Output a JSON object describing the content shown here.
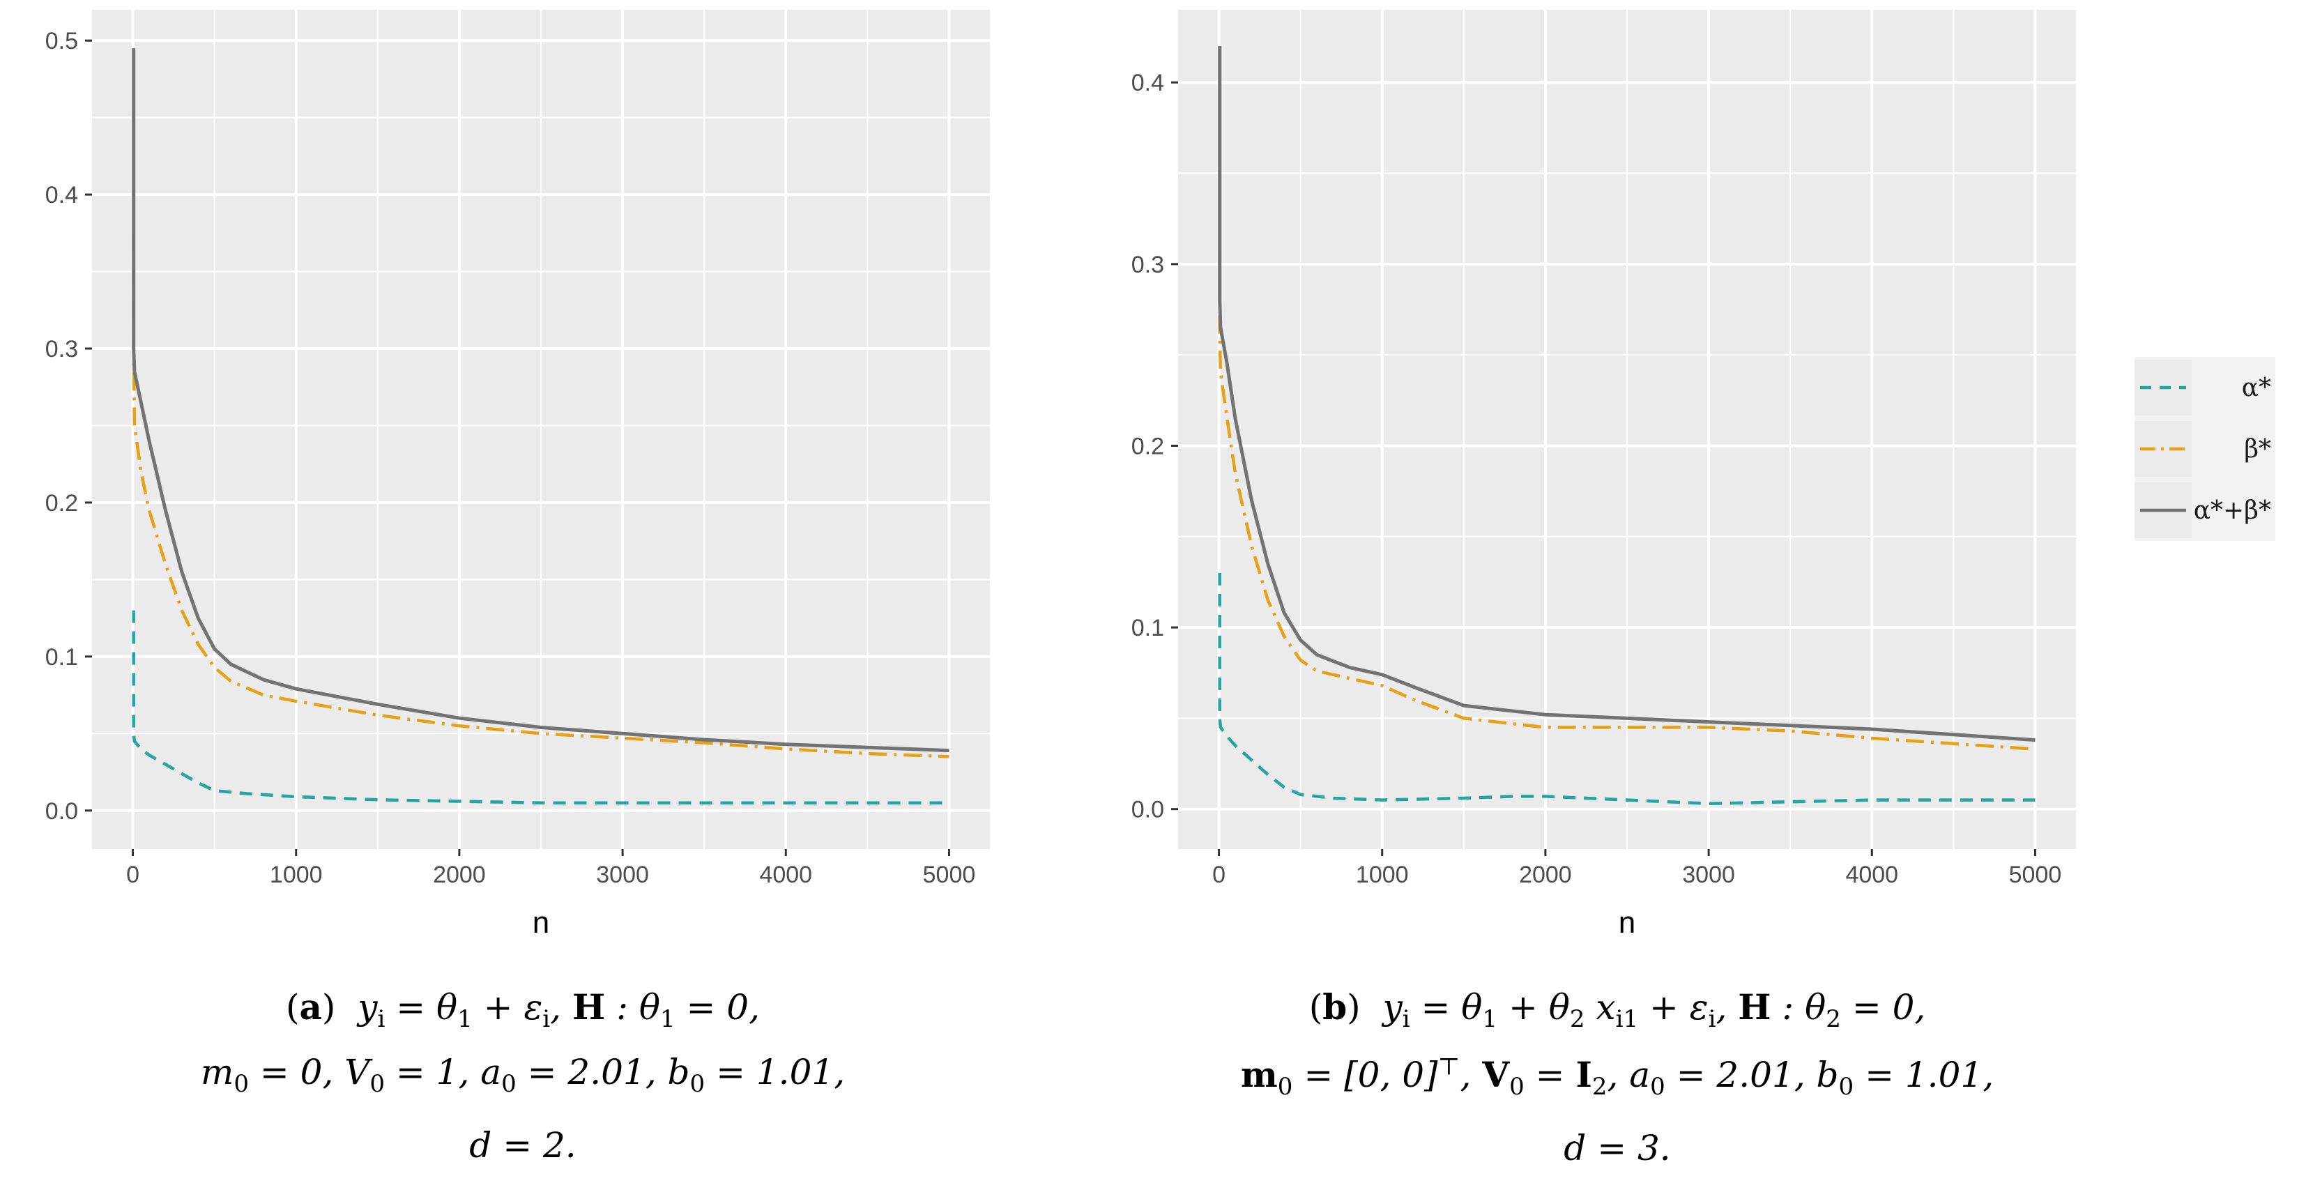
{
  "colors": {
    "panel_bg": "#ebebeb",
    "grid": "#ffffff",
    "tick_mark": "#333333",
    "alpha": "#26a5a0",
    "beta": "#e6a117",
    "sum": "#737373"
  },
  "legend": {
    "items": [
      {
        "label": "α*",
        "series": "alpha"
      },
      {
        "label": "β*",
        "series": "beta"
      },
      {
        "label": "α*+β*",
        "series": "sum"
      }
    ]
  },
  "chart_data": [
    {
      "type": "line",
      "xlabel": "n",
      "ylabel": "",
      "xlim": [
        -250,
        5250
      ],
      "ylim": [
        -0.025,
        0.52
      ],
      "xticks": [
        0,
        1000,
        2000,
        3000,
        4000,
        5000
      ],
      "xtick_labels": [
        "0",
        "1000",
        "2000",
        "3000",
        "4000",
        "5000"
      ],
      "yticks": [
        0.0,
        0.1,
        0.2,
        0.3,
        0.4,
        0.5
      ],
      "ytick_labels": [
        "0.0",
        "0.1",
        "0.2",
        "0.3",
        "0.4",
        "0.5"
      ],
      "series": [
        {
          "name": "α*",
          "key": "alpha",
          "style": "dashed",
          "x": [
            5,
            5,
            10,
            50,
            100,
            200,
            300,
            400,
            500,
            700,
            1000,
            1500,
            2000,
            2500,
            3000,
            3500,
            4000,
            4500,
            5000
          ],
          "y": [
            0.13,
            0.05,
            0.045,
            0.04,
            0.036,
            0.03,
            0.024,
            0.018,
            0.013,
            0.011,
            0.009,
            0.007,
            0.006,
            0.005,
            0.005,
            0.005,
            0.005,
            0.005,
            0.005
          ]
        },
        {
          "name": "β*",
          "key": "beta",
          "style": "dotdash",
          "x": [
            5,
            5,
            10,
            50,
            100,
            200,
            300,
            400,
            500,
            600,
            800,
            1000,
            1500,
            2000,
            2500,
            3000,
            3500,
            4000,
            4500,
            5000
          ],
          "y": [
            0.375,
            0.3,
            0.25,
            0.22,
            0.195,
            0.16,
            0.13,
            0.108,
            0.093,
            0.084,
            0.075,
            0.071,
            0.062,
            0.055,
            0.05,
            0.047,
            0.044,
            0.04,
            0.037,
            0.035
          ]
        },
        {
          "name": "α*+β*",
          "key": "sum",
          "style": "solid",
          "x": [
            5,
            5,
            10,
            50,
            100,
            200,
            300,
            400,
            500,
            600,
            800,
            1000,
            1500,
            2000,
            2500,
            3000,
            3500,
            4000,
            4500,
            5000
          ],
          "y": [
            0.495,
            0.3,
            0.285,
            0.265,
            0.24,
            0.195,
            0.155,
            0.125,
            0.105,
            0.095,
            0.085,
            0.079,
            0.069,
            0.06,
            0.054,
            0.05,
            0.046,
            0.043,
            0.041,
            0.039
          ]
        }
      ]
    },
    {
      "type": "line",
      "xlabel": "n",
      "ylabel": "",
      "xlim": [
        -250,
        5250
      ],
      "ylim": [
        -0.022,
        0.44
      ],
      "xticks": [
        0,
        1000,
        2000,
        3000,
        4000,
        5000
      ],
      "xtick_labels": [
        "0",
        "1000",
        "2000",
        "3000",
        "4000",
        "5000"
      ],
      "yticks": [
        0.0,
        0.1,
        0.2,
        0.3,
        0.4
      ],
      "ytick_labels": [
        "0.0",
        "0.1",
        "0.2",
        "0.3",
        "0.4"
      ],
      "series": [
        {
          "name": "α*",
          "key": "alpha",
          "style": "dashed",
          "x": [
            5,
            5,
            10,
            50,
            100,
            200,
            300,
            400,
            500,
            700,
            1000,
            1500,
            1800,
            2000,
            2500,
            3000,
            3500,
            4000,
            4500,
            5000
          ],
          "y": [
            0.13,
            0.05,
            0.045,
            0.04,
            0.035,
            0.027,
            0.019,
            0.012,
            0.008,
            0.006,
            0.005,
            0.006,
            0.007,
            0.007,
            0.005,
            0.003,
            0.004,
            0.005,
            0.005,
            0.005
          ]
        },
        {
          "name": "β*",
          "key": "beta",
          "style": "dotdash",
          "x": [
            5,
            5,
            10,
            50,
            100,
            200,
            300,
            400,
            500,
            600,
            800,
            1000,
            1200,
            1500,
            2000,
            2500,
            3000,
            3500,
            4000,
            4500,
            5000
          ],
          "y": [
            0.31,
            0.26,
            0.24,
            0.215,
            0.185,
            0.145,
            0.115,
            0.095,
            0.082,
            0.076,
            0.072,
            0.068,
            0.06,
            0.05,
            0.045,
            0.045,
            0.045,
            0.043,
            0.039,
            0.036,
            0.033
          ]
        },
        {
          "name": "α*+β*",
          "key": "sum",
          "style": "solid",
          "x": [
            5,
            5,
            10,
            50,
            100,
            200,
            300,
            400,
            500,
            600,
            800,
            1000,
            1200,
            1500,
            2000,
            2500,
            3000,
            3500,
            4000,
            4500,
            5000
          ],
          "y": [
            0.42,
            0.28,
            0.265,
            0.245,
            0.215,
            0.17,
            0.135,
            0.108,
            0.093,
            0.085,
            0.078,
            0.074,
            0.067,
            0.057,
            0.052,
            0.05,
            0.048,
            0.046,
            0.044,
            0.041,
            0.038
          ]
        }
      ]
    }
  ],
  "captions": [
    {
      "tag": "a",
      "line1": [
        "y",
        "i",
        " = θ",
        "1",
        " + ε",
        "i",
        ",  ",
        "H",
        " : θ",
        "1",
        " = 0,"
      ],
      "line2": [
        "m",
        "0",
        " = 0, V",
        "0",
        " = 1, ",
        "a",
        "0",
        " = 2.01, ",
        "b",
        "0",
        " = 1.01,"
      ],
      "line3": "d = 2."
    },
    {
      "tag": "b",
      "line1": [
        "y",
        "i",
        " = θ",
        "1",
        " + θ",
        "2",
        " x",
        "i1",
        " + ε",
        "i",
        ",  ",
        "H",
        " : θ",
        "2",
        " = 0,"
      ],
      "line2": [
        "m",
        "0",
        " = [0, 0]",
        "⊤",
        ",  ",
        "V",
        "0",
        " = ",
        "I",
        "2",
        ", ",
        "a",
        "0",
        " = 2.01, ",
        "b",
        "0",
        " = 1.01,"
      ],
      "line3": "d = 3."
    }
  ]
}
